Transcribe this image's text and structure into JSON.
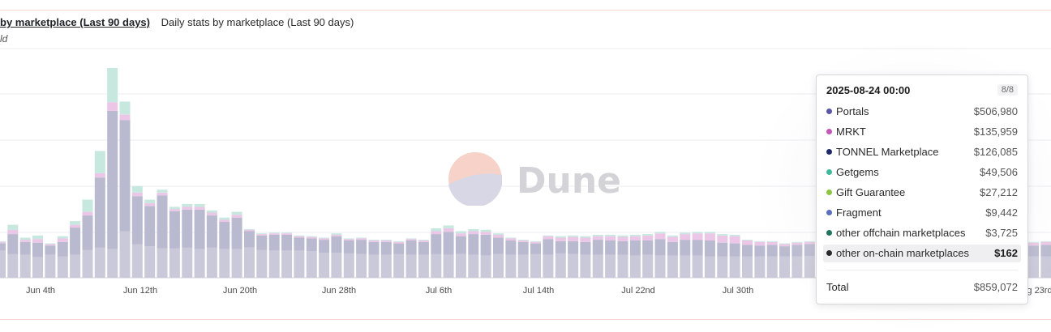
{
  "header": {
    "tab_active": "by marketplace (Last 90 days)",
    "tab_other": "Daily stats by marketplace (Last 90 days)",
    "subtitle": "ld"
  },
  "watermark": {
    "text": "Dune"
  },
  "colors": {
    "Portals": "#b9b9cf",
    "MRKT": "#ecc6e6",
    "TONNEL Marketplace": "#c9c9d9",
    "Getgems": "#c6e8df",
    "Gift Guarantee": "#d9ecb8",
    "Fragment": "#bfc6e6",
    "other offchain marketplaces": "#b8d8cf",
    "other on-chain marketplaces": "#9a9aa0"
  },
  "chart_data": {
    "type": "bar",
    "stacked": true,
    "x_ticks": [
      "Jun 4th",
      "Jun 12th",
      "Jun 20th",
      "Jun 28th",
      "Jul 6th",
      "Jul 14th",
      "Jul 22nd",
      "Jul 30th",
      "g 23rd"
    ],
    "grid": true,
    "series_order": [
      "TONNEL Marketplace",
      "Portals",
      "MRKT",
      "Getgems"
    ],
    "values_k": {
      "TONNEL Marketplace": [
        380,
        330,
        320,
        290,
        320,
        300,
        320,
        390,
        420,
        400,
        650,
        470,
        440,
        410,
        410,
        420,
        400,
        420,
        400,
        400,
        420,
        390,
        380,
        380,
        380,
        370,
        350,
        350,
        340,
        330,
        320,
        320,
        330,
        320,
        320,
        330,
        320,
        330,
        320,
        310,
        330,
        320,
        320,
        330,
        320,
        340,
        330,
        320,
        320,
        320,
        320,
        310,
        320,
        310,
        310,
        310,
        310,
        300,
        300,
        300,
        300,
        300,
        300,
        300,
        300,
        300,
        300,
        300,
        300,
        300,
        300,
        300,
        300,
        300,
        300,
        300,
        300,
        300,
        300,
        300,
        300,
        300,
        300,
        300,
        300,
        300,
        300,
        300
      ],
      "Portals": [
        100,
        280,
        180,
        200,
        130,
        200,
        380,
        480,
        980,
        1930,
        1550,
        670,
        560,
        740,
        520,
        530,
        550,
        450,
        380,
        440,
        230,
        200,
        220,
        220,
        180,
        180,
        180,
        230,
        180,
        200,
        180,
        180,
        150,
        200,
        180,
        280,
        320,
        250,
        290,
        290,
        230,
        200,
        180,
        150,
        220,
        170,
        180,
        180,
        210,
        200,
        190,
        210,
        200,
        230,
        190,
        220,
        220,
        220,
        190,
        180,
        160,
        150,
        160,
        140,
        160,
        170,
        170,
        110,
        480,
        230,
        200,
        190,
        170,
        180,
        170,
        180,
        190,
        150,
        140,
        150,
        150,
        170,
        180,
        150,
        160,
        150,
        140,
        130
      ],
      "MRKT": [
        20,
        60,
        30,
        50,
        20,
        50,
        40,
        50,
        60,
        120,
        80,
        50,
        40,
        40,
        30,
        40,
        40,
        40,
        30,
        40,
        20,
        20,
        20,
        20,
        20,
        20,
        20,
        20,
        20,
        20,
        20,
        20,
        20,
        20,
        20,
        40,
        50,
        40,
        40,
        40,
        40,
        30,
        20,
        20,
        40,
        50,
        60,
        60,
        50,
        60,
        60,
        60,
        70,
        80,
        70,
        80,
        90,
        100,
        100,
        100,
        60,
        50,
        40,
        30,
        30,
        30,
        40,
        30,
        110,
        60,
        60,
        50,
        40,
        50,
        40,
        40,
        40,
        40,
        40,
        40,
        40,
        40,
        40,
        40,
        40,
        40,
        40,
        40
      ],
      "Getgems": [
        10,
        70,
        30,
        50,
        10,
        30,
        50,
        170,
        310,
        480,
        180,
        90,
        50,
        40,
        30,
        40,
        40,
        30,
        30,
        40,
        10,
        10,
        10,
        10,
        10,
        10,
        10,
        20,
        10,
        10,
        10,
        10,
        10,
        10,
        10,
        40,
        40,
        30,
        30,
        30,
        20,
        10,
        10,
        10,
        10,
        20,
        20,
        20,
        20,
        20,
        20,
        20,
        20,
        20,
        20,
        20,
        20,
        20,
        20,
        20,
        10,
        10,
        10,
        10,
        10,
        10,
        10,
        10,
        20,
        20,
        20,
        20,
        10,
        10,
        10,
        10,
        10,
        10,
        10,
        10,
        10,
        10,
        10,
        10,
        10,
        10,
        10,
        10
      ]
    },
    "tooltip": {
      "date": "2025-08-24 00:00",
      "count": "8/8",
      "rows": [
        {
          "name": "Portals",
          "value": "$506,980",
          "color": "#5a56a8"
        },
        {
          "name": "MRKT",
          "value": "$135,959",
          "color": "#c356b8"
        },
        {
          "name": "TONNEL Marketplace",
          "value": "$126,085",
          "color": "#1f2a6b"
        },
        {
          "name": "Getgems",
          "value": "$49,506",
          "color": "#3fb89b"
        },
        {
          "name": "Gift Guarantee",
          "value": "$27,212",
          "color": "#8cc540"
        },
        {
          "name": "Fragment",
          "value": "$9,442",
          "color": "#5a6ec0"
        },
        {
          "name": "other offchain marketplaces",
          "value": "$3,725",
          "color": "#1f7560"
        },
        {
          "name": "other on-chain marketplaces",
          "value": "$162",
          "color": "#2a2a2a"
        }
      ],
      "total_label": "Total",
      "total_value": "$859,072"
    }
  }
}
